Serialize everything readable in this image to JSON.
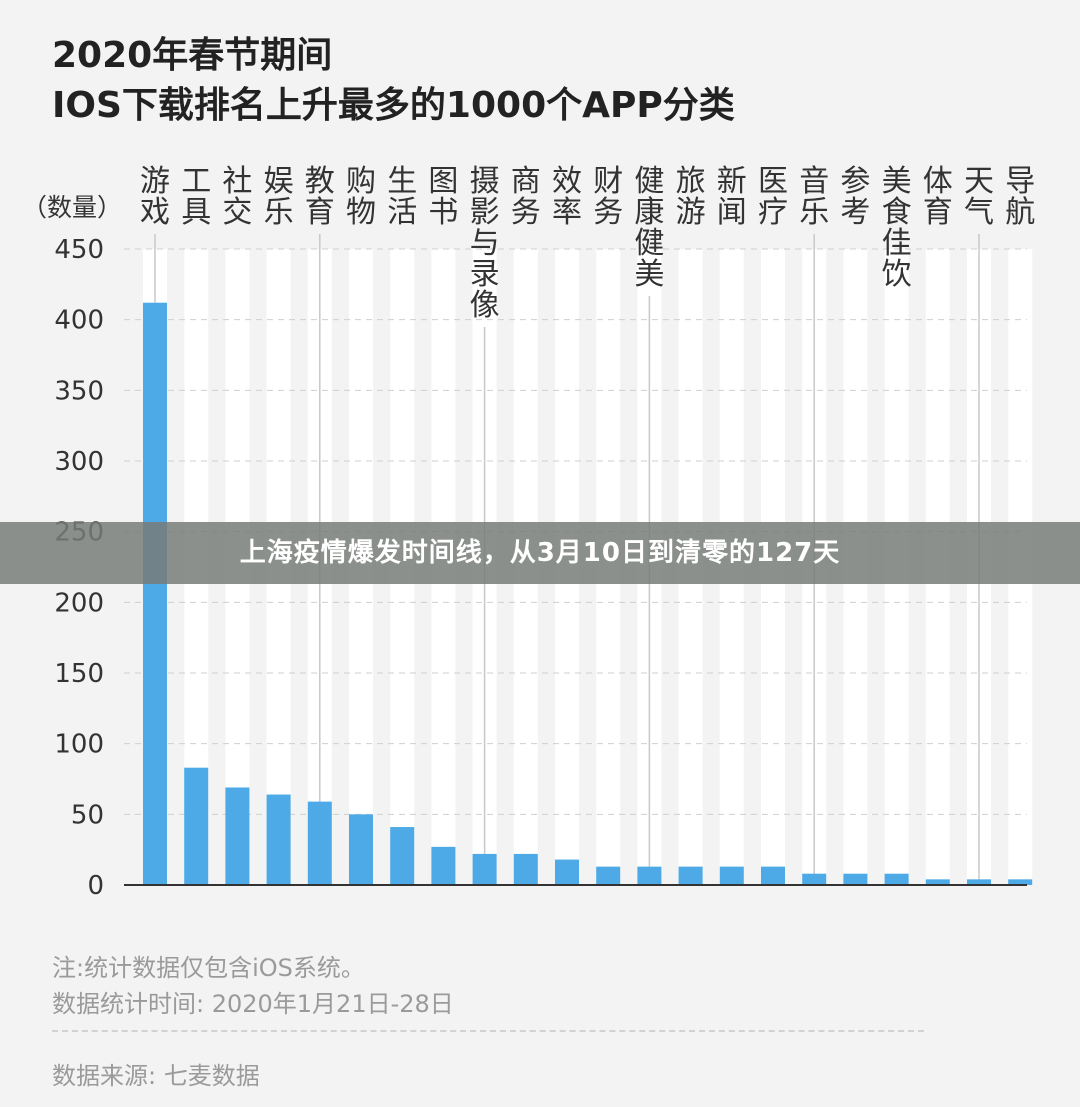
{
  "banner": {
    "text": "上海疫情爆发时间线，从3月10日到清零的127天"
  },
  "notes": {
    "note1": "注:统计数据仅包含iOS系统。",
    "note2": "数据统计时间: 2020年1月21日-28日",
    "note3": "数据来源: 七麦数据"
  },
  "chart_data": {
    "type": "bar",
    "title": "2020年春节期间",
    "subtitle": "IOS下载排名上升最多的1000个APP分类",
    "ylabel": "（数量）",
    "xlabel": "",
    "ylim": [
      0,
      450
    ],
    "yticks": [
      0,
      50,
      100,
      150,
      200,
      250,
      300,
      350,
      400,
      450
    ],
    "grid": true,
    "categories": [
      "游戏",
      "工具",
      "社交",
      "娱乐",
      "教育",
      "购物",
      "生活",
      "图书",
      "摄影与录像",
      "商务",
      "效率",
      "财务",
      "健康健美",
      "旅游",
      "新闻",
      "医疗",
      "音乐",
      "参考",
      "美食佳饮",
      "体育",
      "天气",
      "导航"
    ],
    "values": [
      412,
      83,
      69,
      64,
      59,
      50,
      41,
      27,
      22,
      22,
      18,
      13,
      13,
      13,
      13,
      13,
      8,
      8,
      8,
      4,
      4,
      4
    ],
    "colors": {
      "bar": "#4daae6",
      "track": "#ffffff",
      "axis": "#333333",
      "grid": "#cfcfcf",
      "leader": "#c8c8c8"
    }
  }
}
